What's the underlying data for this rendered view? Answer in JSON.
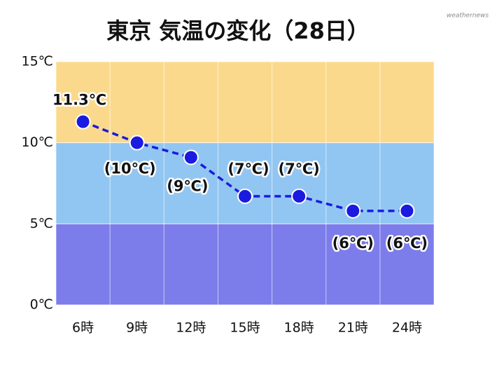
{
  "chart_data": {
    "type": "line",
    "title": "東京 気温の変化（28日）",
    "watermark": "weathernews",
    "categories": [
      "6時",
      "9時",
      "12時",
      "15時",
      "18時",
      "21時",
      "24時"
    ],
    "series": [
      {
        "name": "気温",
        "color": "#1a1ae0",
        "values": [
          11.3,
          10.0,
          9.1,
          6.7,
          6.7,
          5.8,
          5.8
        ],
        "value_labels": [
          "11.3℃",
          "(10℃)",
          "(9℃)",
          "(7℃)",
          "(7℃)",
          "(6℃)",
          "(6℃)"
        ]
      }
    ],
    "ylim": [
      0,
      15
    ],
    "yticks": [
      {
        "value": 0,
        "label": "0℃"
      },
      {
        "value": 5,
        "label": "5℃"
      },
      {
        "value": 10,
        "label": "10℃"
      },
      {
        "value": 15,
        "label": "15℃"
      }
    ],
    "band_colors": [
      "#7c7cea",
      "#92c6f2",
      "#fbd98c"
    ],
    "grid": true
  }
}
